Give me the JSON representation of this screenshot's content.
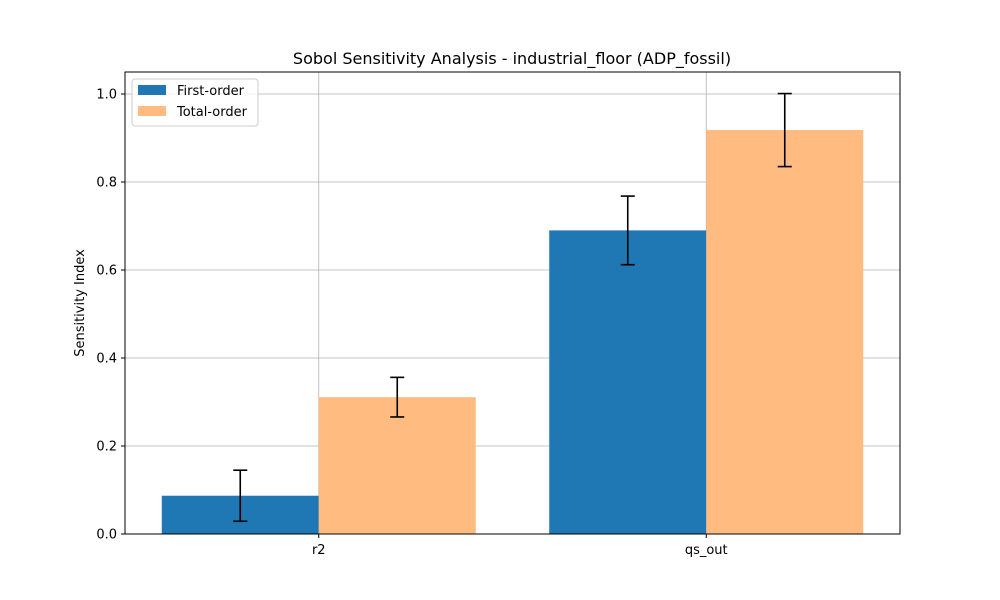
{
  "chart_data": {
    "type": "bar",
    "title": "Sobol Sensitivity Analysis - industrial_floor (ADP_fossil)",
    "xlabel": "",
    "ylabel": "Sensitivity Index",
    "categories": [
      "r2",
      "qs_out"
    ],
    "series": [
      {
        "name": "First-order",
        "color": "#1f77b4",
        "values": [
          0.087,
          0.69
        ],
        "errors": [
          0.058,
          0.078
        ]
      },
      {
        "name": "Total-order",
        "color": "#ffbb80",
        "values": [
          0.311,
          0.918
        ],
        "errors": [
          0.045,
          0.083
        ]
      }
    ],
    "ylim": [
      0,
      1.05
    ],
    "yticks": [
      0.0,
      0.2,
      0.4,
      0.6,
      0.8,
      1.0
    ],
    "ytick_labels": [
      "0.0",
      "0.2",
      "0.4",
      "0.6",
      "0.8",
      "1.0"
    ],
    "grid": true,
    "legend": "top-left"
  }
}
